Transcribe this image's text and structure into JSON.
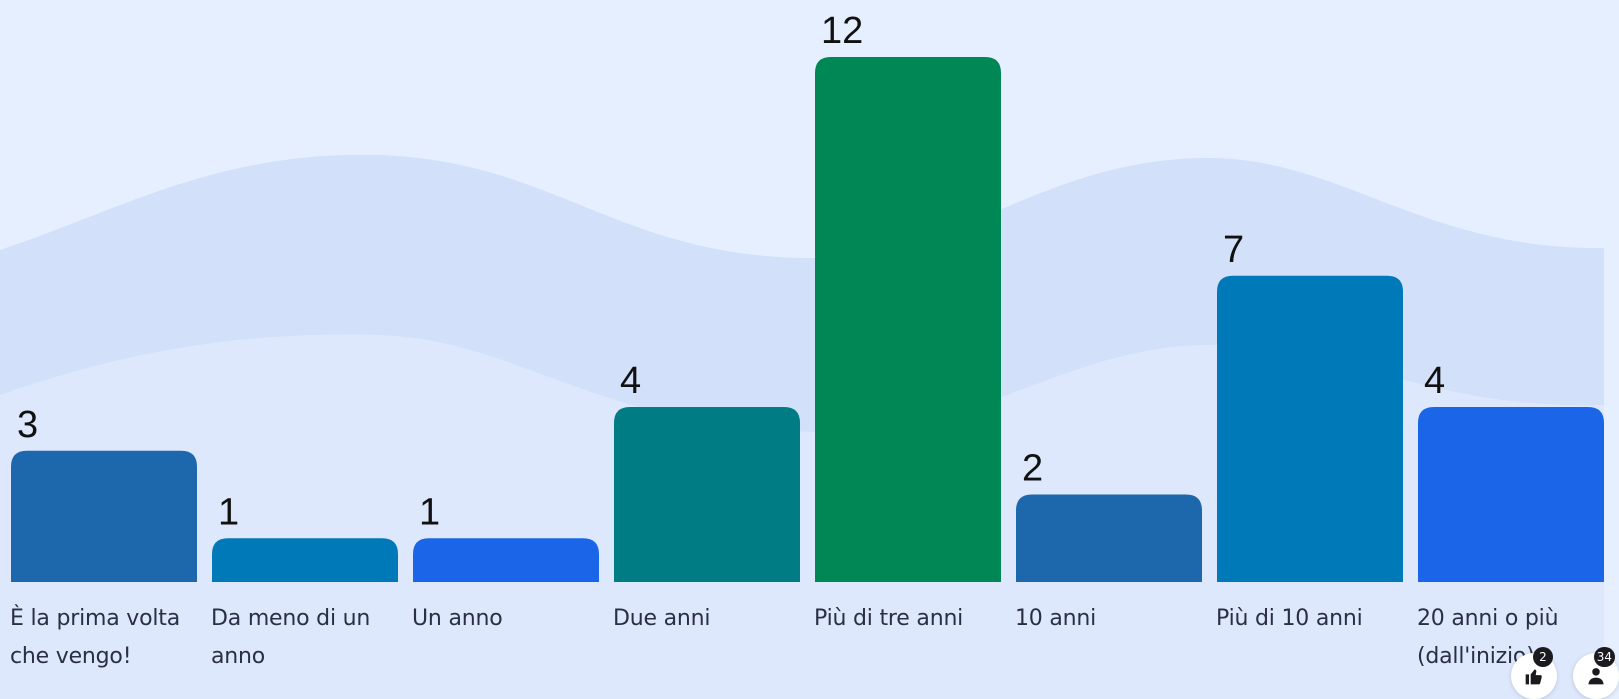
{
  "chart_data": {
    "type": "bar",
    "categories": [
      "È la prima volta\nche vengo!",
      "Da meno di un\nanno",
      "Un anno",
      "Due anni",
      "Più di tre anni",
      "10 anni",
      "Più di 10 anni",
      "20 anni o più\n(dall'inizio)"
    ],
    "values": [
      3,
      1,
      1,
      4,
      12,
      2,
      7,
      4
    ],
    "value_labels": [
      "3",
      "1",
      "1",
      "4",
      "12",
      "2",
      "7",
      "4"
    ],
    "colors": [
      "#1d67ad",
      "#0079b8",
      "#1b66e8",
      "#007c84",
      "#008756",
      "#1d67ad",
      "#0079b8",
      "#1b66e8"
    ],
    "ylim": [
      0,
      12
    ],
    "grid": false,
    "legend": "none",
    "title": "",
    "xlabel": "",
    "ylabel": ""
  },
  "controls": {
    "reactions": {
      "icon": "thumbs-up-icon",
      "count": "2"
    },
    "participants": {
      "icon": "person-icon",
      "count": "34"
    }
  },
  "colors": {
    "background": "#e6efff",
    "wave_light": "#dce7fb",
    "wave_mid": "#cfdef8"
  }
}
